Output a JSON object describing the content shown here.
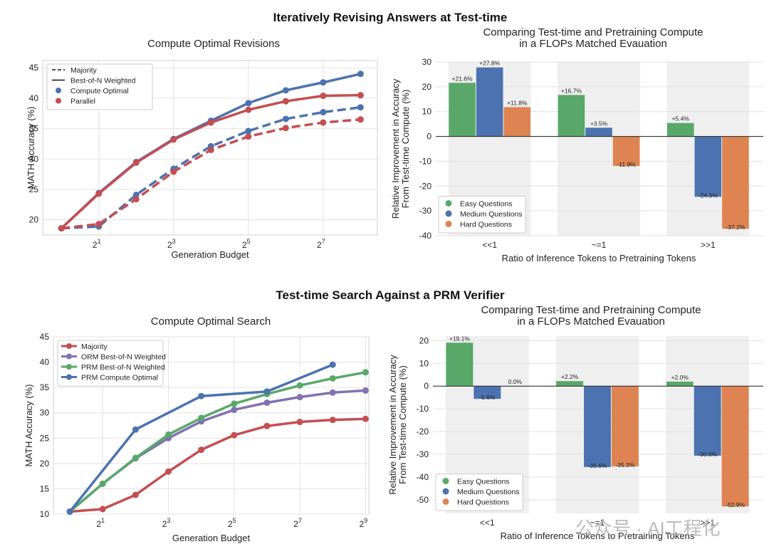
{
  "sections": [
    {
      "title": "Iteratively Revising Answers at Test-time"
    },
    {
      "title": "Test-time Search Against a PRM Verifier"
    }
  ],
  "watermark": "公众号 · AI工程化",
  "colors": {
    "green": "#59a869",
    "blue": "#4c72b0",
    "red": "#c44e52",
    "orange": "#dd8452",
    "purple": "#8172b2"
  },
  "chart_data": [
    {
      "type": "line",
      "title": "Compute Optimal Revisions",
      "xlabel": "Generation Budget",
      "ylabel": "MATH Accuracy (%)",
      "x_scale": "log2",
      "x": [
        1,
        2,
        4,
        8,
        16,
        32,
        64,
        128,
        256
      ],
      "xticks": [
        {
          "value": 2,
          "base": "2",
          "exp": "1"
        },
        {
          "value": 8,
          "base": "2",
          "exp": "3"
        },
        {
          "value": 32,
          "base": "2",
          "exp": "5"
        },
        {
          "value": 128,
          "base": "2",
          "exp": "7"
        }
      ],
      "ylim": [
        17.5,
        46.2
      ],
      "yticks": [
        20,
        25,
        30,
        35,
        40,
        45
      ],
      "grid": true,
      "legend_position": "top-left",
      "legend": [
        {
          "label": "Majority",
          "kind": "dash"
        },
        {
          "label": "Best-of-N Weighted",
          "kind": "solid"
        },
        {
          "label": "Compute Optimal",
          "kind": "dot",
          "color": "#4c72b0"
        },
        {
          "label": "Parallel",
          "kind": "dot",
          "color": "#c44e52"
        }
      ],
      "series": [
        {
          "name": "Compute Optimal",
          "style": "solid",
          "color": "#4c72b0",
          "values": [
            18.6,
            24.4,
            29.5,
            33.3,
            36.3,
            39.2,
            41.3,
            42.6,
            44.0
          ]
        },
        {
          "name": "Parallel",
          "style": "solid",
          "color": "#c44e52",
          "values": [
            18.6,
            24.3,
            29.4,
            33.2,
            36.0,
            38.1,
            39.5,
            40.4,
            40.5
          ]
        },
        {
          "name": "Compute Optimal",
          "style": "dash",
          "color": "#4c72b0",
          "values": [
            18.6,
            18.9,
            24.1,
            28.4,
            32.1,
            34.6,
            36.6,
            37.7,
            38.5
          ]
        },
        {
          "name": "Parallel",
          "style": "dash",
          "color": "#c44e52",
          "values": [
            18.6,
            19.3,
            23.4,
            27.9,
            31.5,
            33.7,
            35.1,
            36.0,
            36.5
          ]
        }
      ]
    },
    {
      "type": "bar",
      "title": [
        "Comparing Test-time and Pretraining Compute",
        "in a FLOPs Matched Evauation"
      ],
      "xlabel": "Ratio of Inference Tokens to Pretraining Tokens",
      "ylabel": [
        "Relative Improvement in Accuracy",
        "From Test-time Compute (%)"
      ],
      "categories": [
        "<<1",
        "~=1",
        ">>1"
      ],
      "ylim": [
        -40,
        30
      ],
      "yticks": [
        30,
        20,
        10,
        0,
        -10,
        -20,
        -30,
        -40
      ],
      "legend_position": "bottom-left",
      "series": [
        {
          "name": "Easy Questions",
          "color": "#59a869",
          "values": [
            21.6,
            16.7,
            5.4
          ],
          "labels": [
            "+21.6%",
            "+16.7%",
            "+5.4%"
          ]
        },
        {
          "name": "Medium Questions",
          "color": "#4c72b0",
          "values": [
            27.8,
            3.5,
            -24.3
          ],
          "labels": [
            "+27.8%",
            "+3.5%",
            "-24.3%"
          ]
        },
        {
          "name": "Hard Questions",
          "color": "#dd8452",
          "values": [
            11.8,
            -11.9,
            -37.2
          ],
          "labels": [
            "+11.8%",
            "-11.9%",
            "-37.2%"
          ]
        }
      ]
    },
    {
      "type": "line",
      "title": "Compute Optimal Search",
      "xlabel": "Generation Budget",
      "ylabel": "MATH Accuracy (%)",
      "x_scale": "log2",
      "xlim_exp": [
        -0.5,
        9.1
      ],
      "xticks": [
        {
          "value": 2,
          "base": "2",
          "exp": "1"
        },
        {
          "value": 8,
          "base": "2",
          "exp": "3"
        },
        {
          "value": 32,
          "base": "2",
          "exp": "5"
        },
        {
          "value": 128,
          "base": "2",
          "exp": "7"
        },
        {
          "value": 512,
          "base": "2",
          "exp": "9"
        }
      ],
      "ylim": [
        10,
        45
      ],
      "yticks": [
        10,
        15,
        20,
        25,
        30,
        35,
        40,
        45
      ],
      "grid": true,
      "legend_position": "top-left",
      "series": [
        {
          "name": "Majority",
          "color": "#c44e52",
          "x": [
            1,
            2,
            4,
            8,
            16,
            32,
            64,
            128,
            256,
            512
          ],
          "values": [
            10.5,
            11.0,
            13.8,
            18.4,
            22.7,
            25.6,
            27.4,
            28.2,
            28.6,
            28.8
          ]
        },
        {
          "name": "ORM Best-of-N Weighted",
          "color": "#8172b2",
          "x": [
            1,
            2,
            4,
            8,
            16,
            32,
            64,
            128,
            256,
            512
          ],
          "values": [
            10.5,
            16.0,
            21.0,
            25.0,
            28.3,
            30.6,
            32.0,
            33.1,
            34.0,
            34.4
          ]
        },
        {
          "name": "PRM Best-of-N Weighted",
          "color": "#59a869",
          "x": [
            1,
            2,
            4,
            8,
            16,
            32,
            64,
            128,
            256,
            512
          ],
          "values": [
            10.5,
            16.0,
            21.1,
            25.7,
            29.0,
            31.8,
            33.7,
            35.4,
            36.8,
            38.0
          ]
        },
        {
          "name": "PRM Compute Optimal",
          "color": "#4c72b0",
          "x": [
            1,
            4,
            16,
            64,
            256
          ],
          "values": [
            10.5,
            26.7,
            33.3,
            34.2,
            39.5
          ]
        }
      ]
    },
    {
      "type": "bar",
      "title": [
        "Comparing Test-time and Pretraining Compute",
        "in a FLOPs Matched Evauation"
      ],
      "xlabel": "Ratio of Inference Tokens to Pretraining Tokens",
      "ylabel": [
        "Relative Improvement in Accuracy",
        "From Test-time Compute (%)"
      ],
      "categories": [
        "<<1",
        "~=1",
        ">>1"
      ],
      "ylim": [
        -56,
        22
      ],
      "yticks": [
        20,
        10,
        0,
        -10,
        -20,
        -30,
        -40,
        -50
      ],
      "legend_position": "bottom-left",
      "series": [
        {
          "name": "Easy Questions",
          "color": "#59a869",
          "values": [
            19.1,
            2.2,
            2.0
          ],
          "labels": [
            "+19.1%",
            "+2.2%",
            "+2.0%"
          ]
        },
        {
          "name": "Medium Questions",
          "color": "#4c72b0",
          "values": [
            -5.6,
            -35.6,
            -30.6
          ],
          "labels": [
            "-5.6%",
            "-35.6%",
            "-30.6%"
          ]
        },
        {
          "name": "Hard Questions",
          "color": "#dd8452",
          "values": [
            0.0,
            -35.3,
            -52.9
          ],
          "labels": [
            "0.0%",
            "-35.3%",
            "-52.9%"
          ]
        }
      ]
    }
  ]
}
